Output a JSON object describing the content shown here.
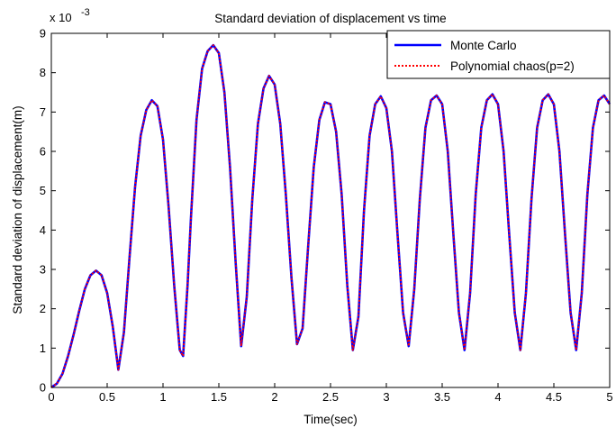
{
  "chart_data": {
    "type": "line",
    "title": "Standard deviation of displacement vs time",
    "xlabel": "Time(sec)",
    "ylabel": "Standard deviation of displacement(m)",
    "y_scale_label": "x 10",
    "y_scale_exponent": "-3",
    "xlim": [
      0,
      5
    ],
    "ylim": [
      0,
      9
    ],
    "x_ticks": [
      "0",
      "0.5",
      "1",
      "1.5",
      "2",
      "2.5",
      "3",
      "3.5",
      "4",
      "4.5",
      "5"
    ],
    "y_ticks": [
      "0",
      "1",
      "2",
      "3",
      "4",
      "5",
      "6",
      "7",
      "8",
      "9"
    ],
    "grid": false,
    "legend_position": "top-right",
    "series": [
      {
        "name": "Monte Carlo",
        "color": "#0000ff",
        "style": "solid",
        "x": [
          0,
          0.05,
          0.1,
          0.15,
          0.2,
          0.25,
          0.3,
          0.35,
          0.4,
          0.45,
          0.5,
          0.55,
          0.6,
          0.65,
          0.7,
          0.75,
          0.8,
          0.85,
          0.9,
          0.95,
          1.0,
          1.05,
          1.1,
          1.15,
          1.18,
          1.22,
          1.25,
          1.3,
          1.35,
          1.4,
          1.45,
          1.5,
          1.55,
          1.6,
          1.65,
          1.7,
          1.75,
          1.8,
          1.85,
          1.9,
          1.95,
          2.0,
          2.05,
          2.1,
          2.15,
          2.2,
          2.25,
          2.3,
          2.35,
          2.4,
          2.45,
          2.5,
          2.55,
          2.6,
          2.65,
          2.7,
          2.75,
          2.8,
          2.85,
          2.9,
          2.95,
          3.0,
          3.05,
          3.1,
          3.15,
          3.2,
          3.25,
          3.3,
          3.35,
          3.4,
          3.45,
          3.5,
          3.55,
          3.6,
          3.65,
          3.7,
          3.75,
          3.8,
          3.85,
          3.9,
          3.95,
          4.0,
          4.05,
          4.1,
          4.15,
          4.2,
          4.25,
          4.3,
          4.35,
          4.4,
          4.45,
          4.5,
          4.55,
          4.6,
          4.65,
          4.7,
          4.75,
          4.8,
          4.85,
          4.9,
          4.95,
          5.0
        ],
        "y": [
          0.0,
          0.1,
          0.35,
          0.8,
          1.35,
          1.95,
          2.5,
          2.85,
          2.97,
          2.85,
          2.4,
          1.55,
          0.45,
          1.4,
          3.3,
          5.1,
          6.4,
          7.05,
          7.3,
          7.15,
          6.3,
          4.6,
          2.6,
          0.95,
          0.8,
          2.6,
          4.3,
          6.8,
          8.1,
          8.55,
          8.7,
          8.5,
          7.5,
          5.6,
          3.2,
          1.05,
          2.3,
          4.8,
          6.7,
          7.6,
          7.92,
          7.7,
          6.7,
          4.9,
          2.8,
          1.1,
          1.5,
          3.6,
          5.6,
          6.8,
          7.25,
          7.2,
          6.5,
          4.9,
          2.6,
          0.95,
          1.8,
          4.5,
          6.4,
          7.2,
          7.4,
          7.1,
          6.0,
          3.9,
          1.9,
          1.05,
          2.5,
          4.8,
          6.6,
          7.3,
          7.42,
          7.2,
          6.0,
          3.9,
          1.9,
          0.95,
          2.4,
          4.9,
          6.6,
          7.3,
          7.45,
          7.2,
          6.0,
          3.9,
          1.9,
          0.95,
          2.4,
          4.8,
          6.6,
          7.3,
          7.45,
          7.2,
          6.0,
          3.9,
          1.9,
          0.95,
          2.4,
          4.9,
          6.6,
          7.3,
          7.42,
          7.2
        ]
      },
      {
        "name": "Polynomial chaos(p=2)",
        "color": "#ff0000",
        "style": "dotted",
        "x": [
          0,
          0.05,
          0.1,
          0.15,
          0.2,
          0.25,
          0.3,
          0.35,
          0.4,
          0.45,
          0.5,
          0.55,
          0.6,
          0.65,
          0.7,
          0.75,
          0.8,
          0.85,
          0.9,
          0.95,
          1.0,
          1.05,
          1.1,
          1.15,
          1.18,
          1.22,
          1.25,
          1.3,
          1.35,
          1.4,
          1.45,
          1.5,
          1.55,
          1.6,
          1.65,
          1.7,
          1.75,
          1.8,
          1.85,
          1.9,
          1.95,
          2.0,
          2.05,
          2.1,
          2.15,
          2.2,
          2.25,
          2.3,
          2.35,
          2.4,
          2.45,
          2.5,
          2.55,
          2.6,
          2.65,
          2.7,
          2.75,
          2.8,
          2.85,
          2.9,
          2.95,
          3.0,
          3.05,
          3.1,
          3.15,
          3.2,
          3.25,
          3.3,
          3.35,
          3.4,
          3.45,
          3.5,
          3.55,
          3.6,
          3.65,
          3.7,
          3.75,
          3.8,
          3.85,
          3.9,
          3.95,
          4.0,
          4.05,
          4.1,
          4.15,
          4.2,
          4.25,
          4.3,
          4.35,
          4.4,
          4.45,
          4.5,
          4.55,
          4.6,
          4.65,
          4.7,
          4.75,
          4.8,
          4.85,
          4.9,
          4.95,
          5.0
        ],
        "y": [
          0.0,
          0.1,
          0.35,
          0.8,
          1.35,
          1.95,
          2.5,
          2.85,
          2.97,
          2.85,
          2.4,
          1.55,
          0.45,
          1.4,
          3.3,
          5.1,
          6.4,
          7.05,
          7.3,
          7.15,
          6.3,
          4.6,
          2.6,
          0.95,
          0.8,
          2.6,
          4.3,
          6.8,
          8.1,
          8.55,
          8.7,
          8.5,
          7.5,
          5.6,
          3.2,
          1.05,
          2.3,
          4.8,
          6.7,
          7.6,
          7.92,
          7.7,
          6.7,
          4.9,
          2.8,
          1.1,
          1.5,
          3.6,
          5.6,
          6.8,
          7.25,
          7.2,
          6.5,
          4.9,
          2.6,
          0.95,
          1.8,
          4.5,
          6.4,
          7.2,
          7.4,
          7.1,
          6.0,
          3.9,
          1.9,
          1.05,
          2.5,
          4.8,
          6.6,
          7.3,
          7.42,
          7.2,
          6.0,
          3.9,
          1.9,
          0.95,
          2.4,
          4.9,
          6.6,
          7.3,
          7.45,
          7.2,
          6.0,
          3.9,
          1.9,
          0.95,
          2.4,
          4.8,
          6.6,
          7.3,
          7.45,
          7.2,
          6.0,
          3.9,
          1.9,
          0.95,
          2.4,
          4.9,
          6.6,
          7.3,
          7.42,
          7.2
        ]
      }
    ]
  }
}
